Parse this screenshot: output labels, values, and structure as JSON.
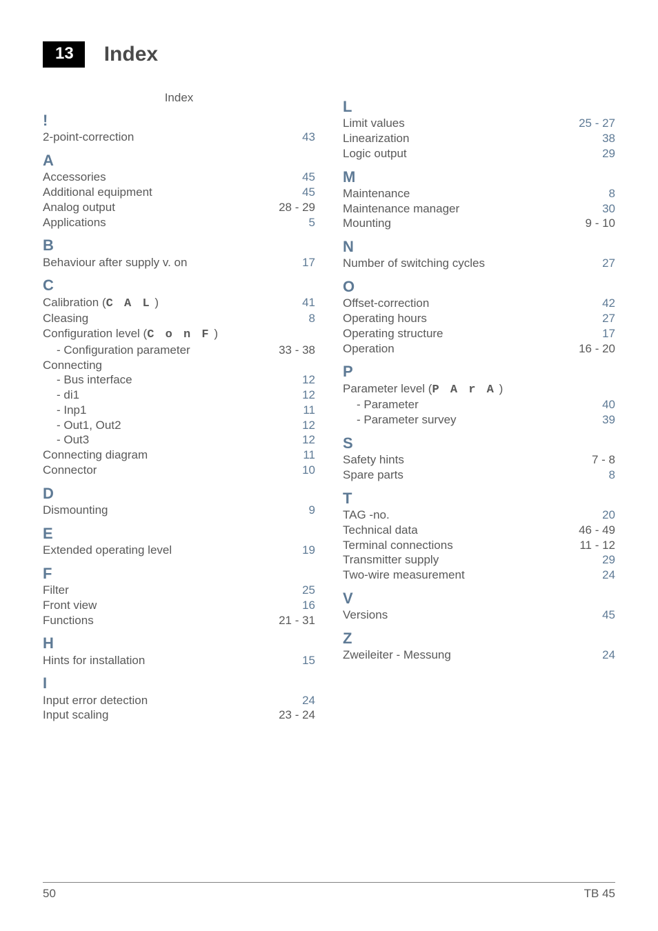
{
  "header": {
    "chapter": "13",
    "title": "Index"
  },
  "indexLabel": "Index",
  "left": [
    {
      "type": "letter",
      "text": "!",
      "color": "#5e7a95"
    },
    {
      "type": "entry",
      "label": "2-point-correction",
      "page": "43",
      "link": true
    },
    {
      "type": "letter",
      "text": "A",
      "color": "#5e7a95"
    },
    {
      "type": "entry",
      "label": "Accessories",
      "page": "45",
      "link": true
    },
    {
      "type": "entry",
      "label": "Additional equipment",
      "page": "45",
      "link": true
    },
    {
      "type": "entry",
      "label": "Analog output",
      "page": "28 - 29"
    },
    {
      "type": "entry",
      "label": "Applications",
      "page": "5",
      "link": true
    },
    {
      "type": "letter",
      "text": "B",
      "color": "#5e7a95"
    },
    {
      "type": "entry",
      "label": "Behaviour after supply v. on",
      "page": "17",
      "link": true
    },
    {
      "type": "letter",
      "text": "C",
      "color": "#5e7a95"
    },
    {
      "type": "entry",
      "label": "Calibration (",
      "seg": "C A L",
      "tail": " )",
      "page": "41",
      "link": true
    },
    {
      "type": "entry",
      "label": "Cleasing",
      "page": "8",
      "link": true
    },
    {
      "type": "entry",
      "label": "Configuration level (",
      "seg": "C o n F",
      "tail": " )",
      "page": ""
    },
    {
      "type": "sub",
      "bullet": "-",
      "label": "Configuration parameter",
      "page": "33 - 38"
    },
    {
      "type": "entry",
      "label": "Connecting",
      "page": ""
    },
    {
      "type": "sub",
      "bullet": "-",
      "label": "Bus interface",
      "page": "12",
      "link": true
    },
    {
      "type": "sub",
      "bullet": "-",
      "label": "di1",
      "page": "12",
      "link": true
    },
    {
      "type": "sub",
      "bullet": "-",
      "label": "Inp1",
      "page": "11",
      "link": true
    },
    {
      "type": "sub",
      "bullet": "-",
      "label": "Out1, Out2",
      "page": "12",
      "link": true
    },
    {
      "type": "sub",
      "bullet": "-",
      "label": "Out3",
      "page": "12",
      "link": true
    },
    {
      "type": "entry",
      "label": "Connecting diagram",
      "page": "11",
      "link": true
    },
    {
      "type": "entry",
      "label": "Connector",
      "page": "10",
      "link": true
    },
    {
      "type": "letter",
      "text": "D",
      "color": "#5e7a95"
    },
    {
      "type": "entry",
      "label": "Dismounting",
      "page": "9",
      "link": true
    },
    {
      "type": "letter",
      "text": "E",
      "color": "#5e7a95"
    },
    {
      "type": "entry",
      "label": "Extended operating level",
      "page": "19",
      "link": true
    },
    {
      "type": "letter",
      "text": "F",
      "color": "#5e7a95"
    },
    {
      "type": "entry",
      "label": "Filter",
      "page": "25",
      "link": true
    },
    {
      "type": "entry",
      "label": "Front view",
      "page": "16",
      "link": true
    },
    {
      "type": "entry",
      "label": "Functions",
      "page": "21 - 31"
    },
    {
      "type": "letter",
      "text": "H",
      "color": "#5e7a95"
    },
    {
      "type": "entry",
      "label": "Hints for installation",
      "page": "15",
      "link": true
    },
    {
      "type": "letter",
      "text": "I",
      "color": "#5e7a95"
    },
    {
      "type": "entry",
      "label": "Input error detection",
      "page": "24",
      "link": true
    },
    {
      "type": "entry",
      "label": "Input scaling",
      "page": "23 - 24"
    }
  ],
  "right": [
    {
      "type": "letter",
      "text": "L",
      "color": "#5e7a95"
    },
    {
      "type": "entry",
      "label": "Limit values",
      "page": "25 - 27",
      "pageLink": true
    },
    {
      "type": "entry",
      "label": "Linearization",
      "page": "38",
      "link": true
    },
    {
      "type": "entry",
      "label": "Logic output",
      "page": "29",
      "link": true
    },
    {
      "type": "letter",
      "text": "M",
      "color": "#5e7a95"
    },
    {
      "type": "entry",
      "label": "Maintenance",
      "page": "8",
      "link": true
    },
    {
      "type": "entry",
      "label": "Maintenance manager",
      "page": "30",
      "link": true
    },
    {
      "type": "entry",
      "label": "Mounting",
      "page": "9 - 10"
    },
    {
      "type": "letter",
      "text": "N",
      "color": "#5e7a95"
    },
    {
      "type": "entry",
      "label": "Number of switching cycles",
      "page": "27",
      "link": true
    },
    {
      "type": "letter",
      "text": "O",
      "color": "#5e7a95"
    },
    {
      "type": "entry",
      "label": "Offset-correction",
      "page": "42",
      "link": true
    },
    {
      "type": "entry",
      "label": "Operating hours",
      "page": "27",
      "link": true
    },
    {
      "type": "entry",
      "label": "Operating structure",
      "page": "17",
      "link": true
    },
    {
      "type": "entry",
      "label": "Operation",
      "page": "16 - 20"
    },
    {
      "type": "letter",
      "text": "P",
      "color": "#5e7a95"
    },
    {
      "type": "entry",
      "label": "Parameter level (",
      "seg": "P A r A",
      "tail": " )",
      "page": ""
    },
    {
      "type": "sub",
      "bullet": "-",
      "label": "Parameter",
      "page": "40",
      "link": true
    },
    {
      "type": "sub",
      "bullet": "-",
      "label": "Parameter survey",
      "page": "39",
      "link": true
    },
    {
      "type": "letter",
      "text": "S",
      "color": "#5e7a95"
    },
    {
      "type": "entry",
      "label": "Safety hints",
      "page": "7 - 8"
    },
    {
      "type": "entry",
      "label": "Spare parts",
      "page": "8",
      "link": true
    },
    {
      "type": "letter",
      "text": "T",
      "color": "#5e7a95"
    },
    {
      "type": "entry",
      "label": "TAG -no.",
      "page": "20",
      "link": true
    },
    {
      "type": "entry",
      "label": "Technical data",
      "page": "46 - 49"
    },
    {
      "type": "entry",
      "label": "Terminal connections",
      "page": "11 - 12"
    },
    {
      "type": "entry",
      "label": "Transmitter supply",
      "page": "29",
      "link": true
    },
    {
      "type": "entry",
      "label": "Two-wire measurement",
      "page": "24",
      "link": true
    },
    {
      "type": "letter",
      "text": "V",
      "color": "#5e7a95"
    },
    {
      "type": "entry",
      "label": "Versions",
      "page": "45",
      "link": true
    },
    {
      "type": "letter",
      "text": "Z",
      "color": "#5e7a95"
    },
    {
      "type": "entry",
      "label": "Zweileiter - Messung",
      "page": "24",
      "link": true
    }
  ],
  "footer": {
    "pageNumber": "50",
    "docId": "TB 45"
  },
  "colors": {
    "accent": "#5e7a95",
    "text": "#595959",
    "black": "#000000",
    "white": "#ffffff"
  }
}
